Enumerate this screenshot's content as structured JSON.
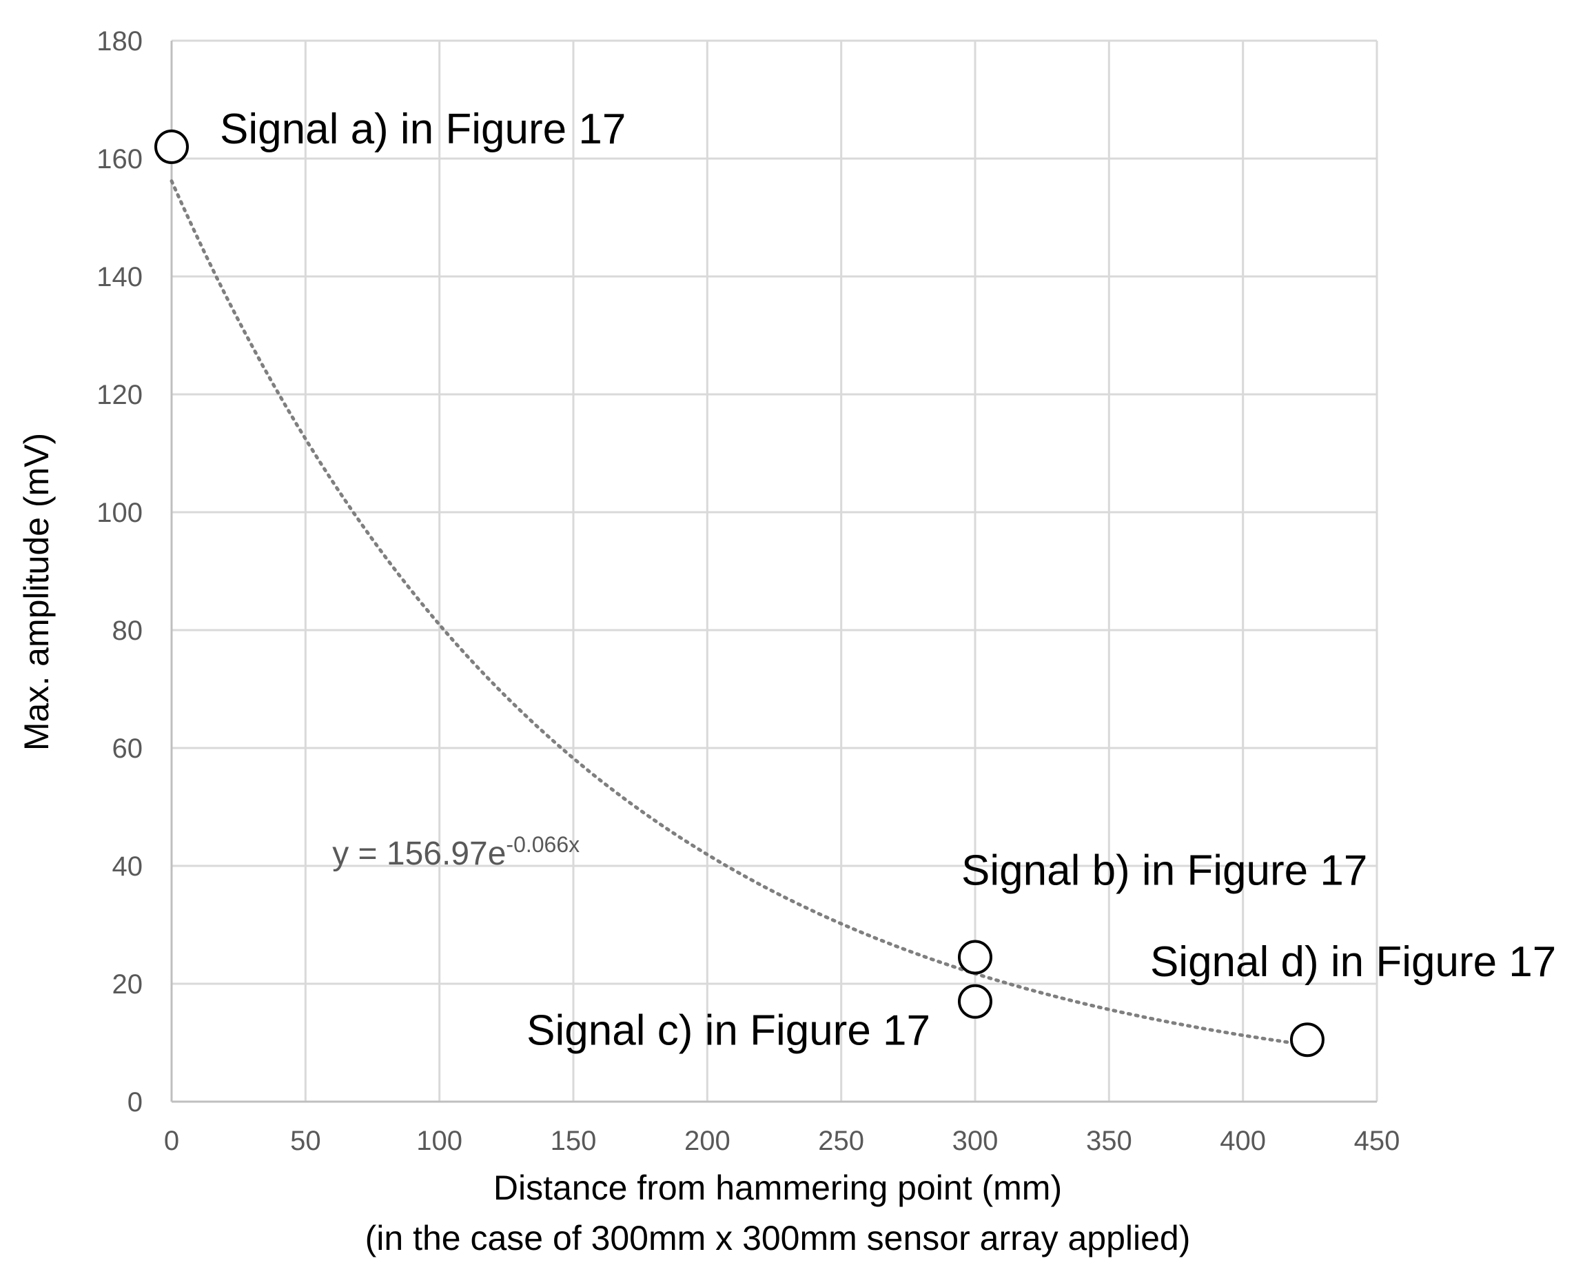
{
  "chart_data": {
    "type": "scatter",
    "xlabel": "Distance from hammering point (mm)",
    "xlabel_line2": "(in the case of 300mm x 300mm sensor array applied)",
    "ylabel": "Max. amplitude (mV)",
    "xlim": [
      0,
      450
    ],
    "ylim": [
      0,
      180
    ],
    "x_ticks": [
      0,
      50,
      100,
      150,
      200,
      250,
      300,
      350,
      400,
      450
    ],
    "y_ticks": [
      0,
      20,
      40,
      60,
      80,
      100,
      120,
      140,
      160,
      180
    ],
    "grid": true,
    "points": [
      {
        "x": 0,
        "y": 162,
        "label": "Signal a) in Figure 17"
      },
      {
        "x": 300,
        "y": 24.5,
        "label": "Signal b) in Figure 17"
      },
      {
        "x": 300,
        "y": 17,
        "label": "Signal c) in Figure 17"
      },
      {
        "x": 424,
        "y": 10.5,
        "label": "Signal d) in Figure 17"
      }
    ],
    "trendline": {
      "type": "exponential",
      "equation_base": "y = 156.97e",
      "equation_exponent": "-0.066x"
    }
  }
}
